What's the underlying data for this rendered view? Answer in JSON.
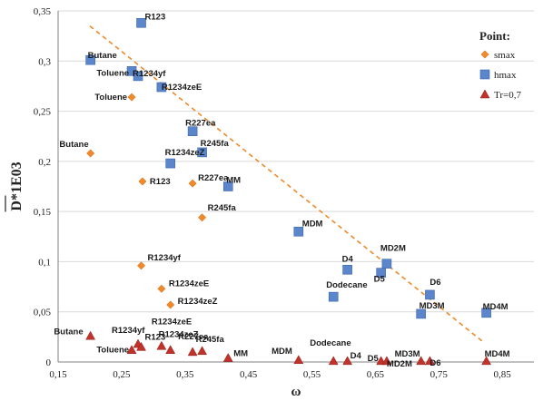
{
  "chart_data": {
    "type": "scatter",
    "xlabel": "ω",
    "ylabel": "D*1E03",
    "xlim": [
      0.15,
      0.9
    ],
    "ylim": [
      0,
      0.35
    ],
    "x_ticks": [
      "0,15",
      "0,25",
      "0,35",
      "0,45",
      "0,55",
      "0,65",
      "0,75",
      "0,85"
    ],
    "x_tick_values": [
      0.15,
      0.25,
      0.35,
      0.45,
      0.55,
      0.65,
      0.75,
      0.85
    ],
    "y_ticks": [
      "0",
      "0,05",
      "0,1",
      "0,15",
      "0,2",
      "0,25",
      "0,3",
      "0,35"
    ],
    "y_tick_values": [
      0,
      0.05,
      0.1,
      0.15,
      0.2,
      0.25,
      0.3,
      0.35
    ],
    "legend": {
      "title": "Point:",
      "placement": "right"
    },
    "colors": {
      "smax": "#f0892a",
      "hmax": "#5b86cc",
      "tr": "#c0322a",
      "trend": "#f0892a"
    },
    "trend_line": {
      "x": [
        0.2,
        0.82
      ],
      "y": [
        0.335,
        0.02
      ]
    },
    "series": [
      {
        "name": "smax",
        "marker": "diamond",
        "points": [
          {
            "x": 0.201,
            "y": 0.208,
            "label": "Butane"
          },
          {
            "x": 0.266,
            "y": 0.264,
            "label": "Toluene"
          },
          {
            "x": 0.283,
            "y": 0.18,
            "label": "R123"
          },
          {
            "x": 0.281,
            "y": 0.096,
            "label": "R1234yf"
          },
          {
            "x": 0.313,
            "y": 0.073,
            "label": "R1234zeE"
          },
          {
            "x": 0.327,
            "y": 0.057,
            "label": "R1234zeZ"
          },
          {
            "x": 0.362,
            "y": 0.178,
            "label": "R227ea"
          },
          {
            "x": 0.377,
            "y": 0.144,
            "label": "R245fa"
          }
        ]
      },
      {
        "name": "hmax",
        "marker": "square",
        "points": [
          {
            "x": 0.201,
            "y": 0.301,
            "label": "Butane"
          },
          {
            "x": 0.266,
            "y": 0.29,
            "label": "Toluene"
          },
          {
            "x": 0.281,
            "y": 0.338,
            "label": "R123"
          },
          {
            "x": 0.276,
            "y": 0.285,
            "label": "R1234yf"
          },
          {
            "x": 0.313,
            "y": 0.274,
            "label": "R1234zeE"
          },
          {
            "x": 0.327,
            "y": 0.198,
            "label": "R1234zeZ"
          },
          {
            "x": 0.362,
            "y": 0.23,
            "label": "R227ea"
          },
          {
            "x": 0.377,
            "y": 0.209,
            "label": "R245fa"
          },
          {
            "x": 0.418,
            "y": 0.175,
            "label": "MM"
          },
          {
            "x": 0.529,
            "y": 0.13,
            "label": "MDM"
          },
          {
            "x": 0.584,
            "y": 0.065,
            "label": "Dodecane"
          },
          {
            "x": 0.606,
            "y": 0.092,
            "label": "D4"
          },
          {
            "x": 0.668,
            "y": 0.098,
            "label": "MD2M"
          },
          {
            "x": 0.659,
            "y": 0.089,
            "label": "D5"
          },
          {
            "x": 0.736,
            "y": 0.067,
            "label": "D6"
          },
          {
            "x": 0.722,
            "y": 0.048,
            "label": "MD3M"
          },
          {
            "x": 0.825,
            "y": 0.049,
            "label": "MD4M"
          }
        ]
      },
      {
        "name": "Tr=0,7",
        "marker": "triangle",
        "points": [
          {
            "x": 0.201,
            "y": 0.026,
            "label": "Butane"
          },
          {
            "x": 0.266,
            "y": 0.012,
            "label": "Toluene"
          },
          {
            "x": 0.276,
            "y": 0.018,
            "label": "R1234yf"
          },
          {
            "x": 0.281,
            "y": 0.015,
            "label": "R123"
          },
          {
            "x": 0.313,
            "y": 0.016,
            "label": "R1234zeE"
          },
          {
            "x": 0.327,
            "y": 0.012,
            "label": "R1234zeZ"
          },
          {
            "x": 0.362,
            "y": 0.01,
            "label": "R227ea"
          },
          {
            "x": 0.377,
            "y": 0.011,
            "label": "R245fa"
          },
          {
            "x": 0.418,
            "y": 0.004,
            "label": "MM"
          },
          {
            "x": 0.529,
            "y": 0.002,
            "label": "MDM"
          },
          {
            "x": 0.584,
            "y": 0.001,
            "label": "Dodecane"
          },
          {
            "x": 0.606,
            "y": 0.001,
            "label": "D4"
          },
          {
            "x": 0.659,
            "y": 0.001,
            "label": "D5"
          },
          {
            "x": 0.668,
            "y": 0.001,
            "label": "MD2M"
          },
          {
            "x": 0.722,
            "y": 0.001,
            "label": "MD3M"
          },
          {
            "x": 0.736,
            "y": 0.001,
            "label": "D6"
          },
          {
            "x": 0.825,
            "y": 0.001,
            "label": "MD4M"
          }
        ]
      }
    ]
  }
}
